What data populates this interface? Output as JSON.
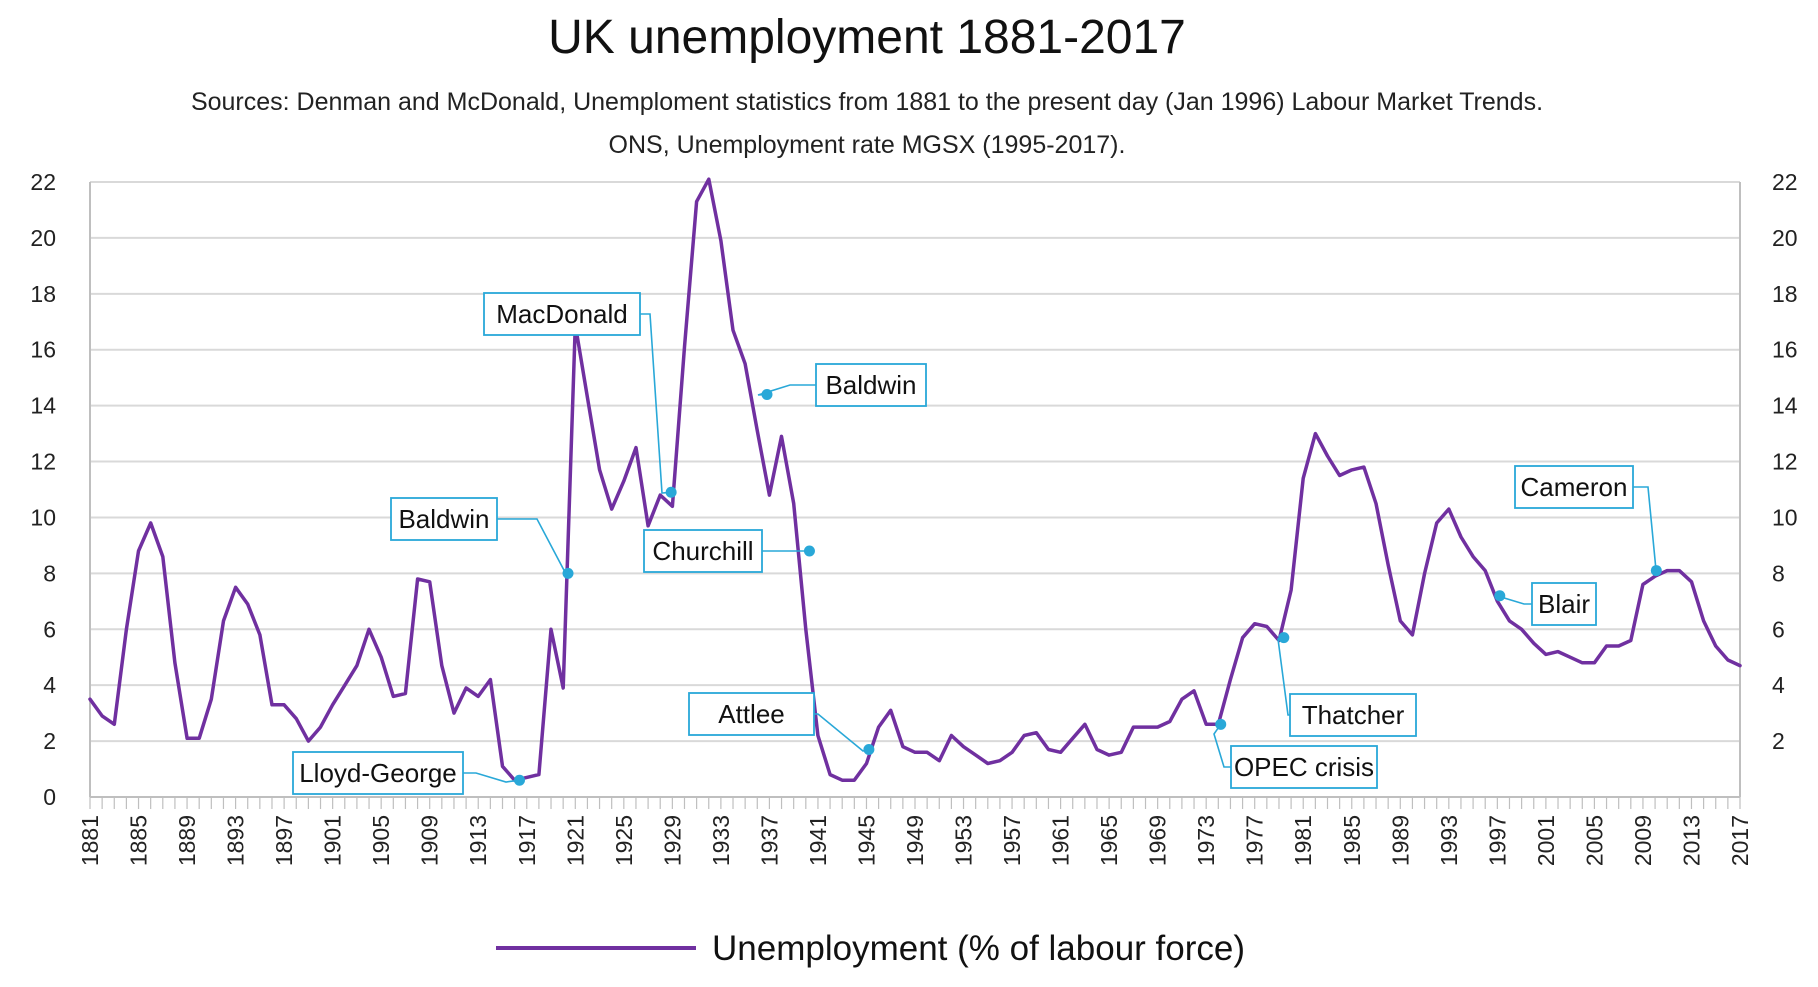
{
  "chart_data": {
    "type": "line",
    "title": "UK unemployment 1881-2017",
    "subtitle_lines": [
      "Sources: Denman and McDonald, Unemploment statistics from 1881 to the present day (Jan 1996) Labour Market Trends.",
      "ONS, Unemployment rate MGSX (1995-2017)."
    ],
    "xlabel": "",
    "ylabel": "",
    "x_range": [
      1881,
      2017
    ],
    "ylim": [
      0,
      22
    ],
    "y_ticks_left": [
      "0",
      "2",
      "4",
      "6",
      "8",
      "10",
      "12",
      "14",
      "16",
      "18",
      "20",
      "22"
    ],
    "y_ticks_right": [
      "2",
      "4",
      "6",
      "8",
      "10",
      "12",
      "14",
      "16",
      "18",
      "20",
      "22"
    ],
    "x_tick_labels": [
      "1881",
      "1885",
      "1889",
      "1893",
      "1897",
      "1901",
      "1905",
      "1909",
      "1913",
      "1917",
      "1921",
      "1925",
      "1929",
      "1933",
      "1937",
      "1941",
      "1945",
      "1949",
      "1953",
      "1957",
      "1961",
      "1965",
      "1969",
      "1973",
      "1977",
      "1981",
      "1985",
      "1989",
      "1993",
      "1997",
      "2001",
      "2005",
      "2009",
      "2013",
      "2017"
    ],
    "grid": "horizontal",
    "legend_position": "bottom",
    "series": [
      {
        "name": "Unemployment (% of labour force)",
        "color": "#7030a0",
        "x": [
          1881,
          1882,
          1883,
          1884,
          1885,
          1886,
          1887,
          1888,
          1889,
          1890,
          1891,
          1892,
          1893,
          1894,
          1895,
          1896,
          1897,
          1898,
          1899,
          1900,
          1901,
          1902,
          1903,
          1904,
          1905,
          1906,
          1907,
          1908,
          1909,
          1910,
          1911,
          1912,
          1913,
          1914,
          1915,
          1916,
          1917,
          1918,
          1919,
          1920,
          1921,
          1922,
          1923,
          1924,
          1925,
          1926,
          1927,
          1928,
          1929,
          1930,
          1931,
          1932,
          1933,
          1934,
          1935,
          1936,
          1937,
          1938,
          1939,
          1940,
          1941,
          1942,
          1943,
          1944,
          1945,
          1946,
          1947,
          1948,
          1949,
          1950,
          1951,
          1952,
          1953,
          1954,
          1955,
          1956,
          1957,
          1958,
          1959,
          1960,
          1961,
          1962,
          1963,
          1964,
          1965,
          1966,
          1967,
          1968,
          1969,
          1970,
          1971,
          1972,
          1973,
          1974,
          1975,
          1976,
          1977,
          1978,
          1979,
          1980,
          1981,
          1982,
          1983,
          1984,
          1985,
          1986,
          1987,
          1988,
          1989,
          1990,
          1991,
          1992,
          1993,
          1994,
          1995,
          1996,
          1997,
          1998,
          1999,
          2000,
          2001,
          2002,
          2003,
          2004,
          2005,
          2006,
          2007,
          2008,
          2009,
          2010,
          2011,
          2012,
          2013,
          2014,
          2015,
          2016,
          2017
        ],
        "values": [
          3.5,
          2.9,
          2.6,
          6.0,
          8.8,
          9.8,
          8.6,
          4.8,
          2.1,
          2.1,
          3.5,
          6.3,
          7.5,
          6.9,
          5.8,
          3.3,
          3.3,
          2.8,
          2.0,
          2.5,
          3.3,
          4.0,
          4.7,
          6.0,
          5.0,
          3.6,
          3.7,
          7.8,
          7.7,
          4.7,
          3.0,
          3.9,
          3.6,
          4.2,
          1.1,
          0.6,
          0.7,
          0.8,
          6.0,
          3.9,
          16.9,
          14.3,
          11.7,
          10.3,
          11.3,
          12.5,
          9.7,
          10.8,
          10.4,
          16.1,
          21.3,
          22.1,
          19.9,
          16.7,
          15.5,
          13.1,
          10.8,
          12.9,
          10.5,
          6.0,
          2.2,
          0.8,
          0.6,
          0.6,
          1.2,
          2.5,
          3.1,
          1.8,
          1.6,
          1.6,
          1.3,
          2.2,
          1.8,
          1.5,
          1.2,
          1.3,
          1.6,
          2.2,
          2.3,
          1.7,
          1.6,
          2.1,
          2.6,
          1.7,
          1.5,
          1.6,
          2.5,
          2.5,
          2.5,
          2.7,
          3.5,
          3.8,
          2.6,
          2.6,
          4.2,
          5.7,
          6.2,
          6.1,
          5.6,
          7.4,
          11.4,
          13.0,
          12.2,
          11.5,
          11.7,
          11.8,
          10.5,
          8.3,
          6.3,
          5.8,
          8.0,
          9.8,
          10.3,
          9.3,
          8.6,
          8.1,
          7.0,
          6.3,
          6.0,
          5.5,
          5.1,
          5.2,
          5.0,
          4.8,
          4.8,
          5.4,
          5.4,
          5.6,
          7.6,
          7.9,
          8.1,
          8.1,
          7.7,
          6.3,
          5.4,
          4.9,
          4.7
        ]
      }
    ],
    "annotations": [
      {
        "label": "MacDonald",
        "year": 1928.9,
        "value": 10.9
      },
      {
        "label": "Baldwin",
        "year": 1936.8,
        "value": 14.4
      },
      {
        "label": "Baldwin",
        "year": 1920.4,
        "value": 8.0
      },
      {
        "label": "Churchill",
        "year": 1940.3,
        "value": 8.8
      },
      {
        "label": "Lloyd-George",
        "year": 1916.4,
        "value": 0.6
      },
      {
        "label": "Attlee",
        "year": 1945.2,
        "value": 1.7
      },
      {
        "label": "OPEC crisis",
        "year": 1974.2,
        "value": 2.6
      },
      {
        "label": "Thatcher",
        "year": 1979.4,
        "value": 5.7
      },
      {
        "label": "Blair",
        "year": 1997.2,
        "value": 7.2
      },
      {
        "label": "Cameron",
        "year": 2010.1,
        "value": 8.1
      }
    ]
  }
}
